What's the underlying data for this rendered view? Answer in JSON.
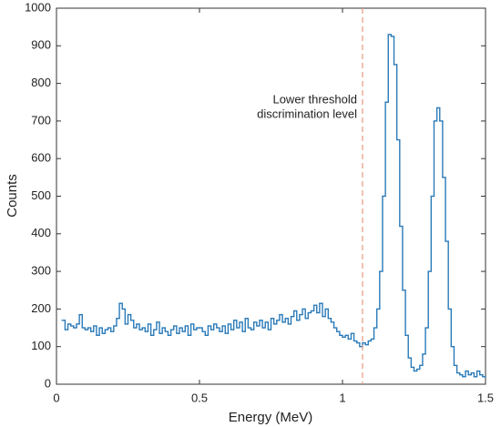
{
  "chart_data": {
    "type": "histogram",
    "xlabel": "Energy (MeV)",
    "ylabel": "Counts",
    "annotation": {
      "lines": [
        "Lower threshold",
        "discrimination level"
      ],
      "x": 1.07
    },
    "color": "#2a7ab8",
    "threshold_color": "#e8977f",
    "xlim": [
      0,
      1.5
    ],
    "xticks": [
      0,
      0.5,
      1,
      1.5
    ],
    "ylim": [
      0,
      1000
    ],
    "yticks": [
      0,
      100,
      200,
      300,
      400,
      500,
      600,
      700,
      800,
      900,
      1000
    ],
    "bins": [
      0.02,
      0.03,
      0.04,
      0.05,
      0.06,
      0.07,
      0.08,
      0.09,
      0.1,
      0.11,
      0.12,
      0.13,
      0.14,
      0.15,
      0.16,
      0.17,
      0.18,
      0.19,
      0.2,
      0.21,
      0.22,
      0.23,
      0.24,
      0.25,
      0.26,
      0.27,
      0.28,
      0.29,
      0.3,
      0.31,
      0.32,
      0.33,
      0.34,
      0.35,
      0.36,
      0.37,
      0.38,
      0.39,
      0.4,
      0.41,
      0.42,
      0.43,
      0.44,
      0.45,
      0.46,
      0.47,
      0.48,
      0.49,
      0.5,
      0.51,
      0.52,
      0.53,
      0.54,
      0.55,
      0.56,
      0.57,
      0.58,
      0.59,
      0.6,
      0.61,
      0.62,
      0.63,
      0.64,
      0.65,
      0.66,
      0.67,
      0.68,
      0.69,
      0.7,
      0.71,
      0.72,
      0.73,
      0.74,
      0.75,
      0.76,
      0.77,
      0.78,
      0.79,
      0.8,
      0.81,
      0.82,
      0.83,
      0.84,
      0.85,
      0.86,
      0.87,
      0.88,
      0.89,
      0.9,
      0.91,
      0.92,
      0.93,
      0.94,
      0.95,
      0.96,
      0.97,
      0.98,
      0.99,
      1.0,
      1.01,
      1.02,
      1.03,
      1.04,
      1.05,
      1.06,
      1.07,
      1.08,
      1.09,
      1.1,
      1.11,
      1.12,
      1.13,
      1.14,
      1.15,
      1.16,
      1.17,
      1.18,
      1.19,
      1.2,
      1.21,
      1.22,
      1.23,
      1.24,
      1.25,
      1.26,
      1.27,
      1.28,
      1.29,
      1.3,
      1.31,
      1.32,
      1.33,
      1.34,
      1.35,
      1.36,
      1.37,
      1.38,
      1.39,
      1.4,
      1.41,
      1.42,
      1.43,
      1.44,
      1.45,
      1.46,
      1.47,
      1.48,
      1.49,
      1.5
    ],
    "values": [
      170,
      145,
      160,
      155,
      150,
      160,
      185,
      150,
      145,
      150,
      140,
      155,
      130,
      150,
      135,
      145,
      150,
      140,
      155,
      175,
      215,
      200,
      160,
      185,
      170,
      150,
      160,
      145,
      150,
      140,
      160,
      130,
      145,
      165,
      135,
      150,
      140,
      130,
      145,
      155,
      135,
      150,
      140,
      155,
      130,
      160,
      145,
      150,
      150,
      140,
      130,
      155,
      145,
      160,
      150,
      140,
      155,
      135,
      160,
      145,
      170,
      150,
      165,
      140,
      175,
      150,
      145,
      165,
      155,
      170,
      150,
      165,
      145,
      175,
      160,
      170,
      185,
      165,
      175,
      160,
      180,
      195,
      170,
      185,
      200,
      175,
      190,
      195,
      210,
      190,
      215,
      180,
      200,
      175,
      165,
      150,
      140,
      130,
      125,
      130,
      120,
      135,
      115,
      110,
      100,
      110,
      105,
      115,
      120,
      150,
      200,
      300,
      500,
      750,
      930,
      925,
      850,
      650,
      420,
      250,
      130,
      70,
      45,
      35,
      40,
      50,
      80,
      150,
      300,
      500,
      700,
      735,
      700,
      550,
      380,
      200,
      100,
      50,
      30,
      25,
      20,
      35,
      25,
      30,
      20,
      35,
      25,
      20
    ]
  }
}
